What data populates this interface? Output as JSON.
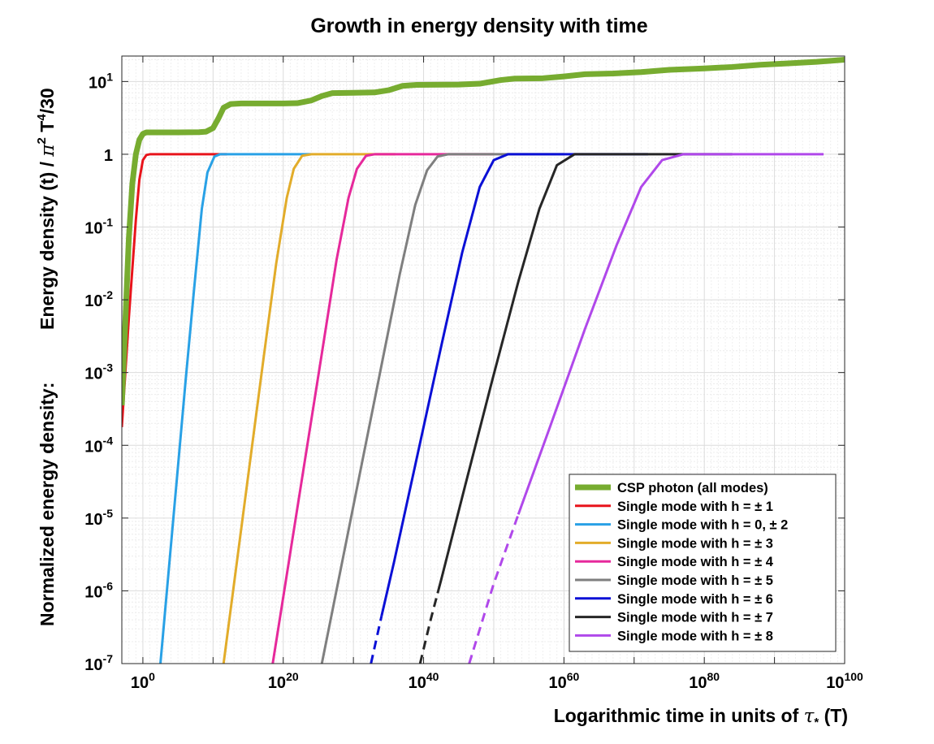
{
  "chart_data": {
    "type": "line",
    "title": "Growth in energy density with time",
    "xlabel": {
      "text": "Logarithmic time in units of",
      "symbol": "τ",
      "symbol_sub": "*",
      "suffix": "(T)"
    },
    "ylabel": {
      "part1": "Normalized energy density:",
      "part2": "Energy density (t) /",
      "pi": "π",
      "exp2": "2",
      "T": "T",
      "exp4": "4",
      "tail": "/30"
    },
    "x_scale": "log10",
    "y_scale": "log10",
    "xlim_log10": [
      -3,
      100
    ],
    "ylim_log10": [
      -7,
      1.35
    ],
    "grid": true,
    "x_ticks": [
      {
        "base": "10",
        "exp": "0",
        "log10": 0
      },
      {
        "base": "10",
        "exp": "20",
        "log10": 20
      },
      {
        "base": "10",
        "exp": "40",
        "log10": 40
      },
      {
        "base": "10",
        "exp": "60",
        "log10": 60
      },
      {
        "base": "10",
        "exp": "80",
        "log10": 80
      },
      {
        "base": "10",
        "exp": "100",
        "log10": 100
      }
    ],
    "y_ticks": [
      {
        "base": "10",
        "exp": "1",
        "log10": 1
      },
      {
        "base": "1",
        "exp": "",
        "log10": 0
      },
      {
        "base": "10",
        "exp": "-1",
        "log10": -1
      },
      {
        "base": "10",
        "exp": "-2",
        "log10": -2
      },
      {
        "base": "10",
        "exp": "-3",
        "log10": -3
      },
      {
        "base": "10",
        "exp": "-4",
        "log10": -4
      },
      {
        "base": "10",
        "exp": "-5",
        "log10": -5
      },
      {
        "base": "10",
        "exp": "-6",
        "log10": -6
      },
      {
        "base": "10",
        "exp": "-7",
        "log10": -7
      }
    ],
    "legend_position": "bottom-right",
    "series": [
      {
        "name": "CSP photon (all modes)",
        "color": "#77AC30",
        "width": 7,
        "points": [
          [
            -3,
            -3.45
          ],
          [
            -2.5,
            -2.3
          ],
          [
            -2,
            -1.15
          ],
          [
            -1.5,
            -0.4
          ],
          [
            -1,
            0.0
          ],
          [
            -0.5,
            0.2
          ],
          [
            0,
            0.28
          ],
          [
            0.5,
            0.301
          ],
          [
            1,
            0.301
          ],
          [
            5,
            0.301
          ],
          [
            8,
            0.303
          ],
          [
            9,
            0.31
          ],
          [
            10,
            0.36
          ],
          [
            10.8,
            0.5
          ],
          [
            11.5,
            0.64
          ],
          [
            12.5,
            0.69
          ],
          [
            14,
            0.699
          ],
          [
            20,
            0.699
          ],
          [
            22,
            0.702
          ],
          [
            24,
            0.74
          ],
          [
            25.5,
            0.8
          ],
          [
            27,
            0.841
          ],
          [
            30,
            0.845
          ],
          [
            33,
            0.85
          ],
          [
            35,
            0.88
          ],
          [
            37,
            0.94
          ],
          [
            39,
            0.954
          ],
          [
            45,
            0.958
          ],
          [
            48,
            0.97
          ],
          [
            51,
            1.02
          ],
          [
            53,
            1.04
          ],
          [
            57,
            1.045
          ],
          [
            60,
            1.07
          ],
          [
            63,
            1.1
          ],
          [
            67,
            1.11
          ],
          [
            71,
            1.13
          ],
          [
            75,
            1.16
          ],
          [
            80,
            1.18
          ],
          [
            84,
            1.2
          ],
          [
            88,
            1.23
          ],
          [
            92,
            1.25
          ],
          [
            96,
            1.27
          ],
          [
            100,
            1.3
          ]
        ]
      },
      {
        "name": "Single mode with h = ± 1",
        "color": "#E8141B",
        "width": 3,
        "points": [
          [
            -3,
            -3.75
          ],
          [
            -2,
            -2.25
          ],
          [
            -1,
            -0.9
          ],
          [
            -0.5,
            -0.35
          ],
          [
            0,
            -0.08
          ],
          [
            0.5,
            -0.01
          ],
          [
            1,
            0
          ],
          [
            12,
            0
          ]
        ]
      },
      {
        "name": "Single mode with h = 0, ± 2",
        "color": "#29A1E6",
        "width": 3,
        "points": [
          [
            2.5,
            -7
          ],
          [
            3.7,
            -5.7
          ],
          [
            4.9,
            -4.4
          ],
          [
            6.1,
            -3.1
          ],
          [
            7.3,
            -1.85
          ],
          [
            8.4,
            -0.75
          ],
          [
            9.2,
            -0.25
          ],
          [
            10.2,
            -0.03
          ],
          [
            11,
            0
          ],
          [
            24,
            0
          ]
        ]
      },
      {
        "name": "Single mode with h = ± 3",
        "color": "#E2AC2A",
        "width": 3,
        "points": [
          [
            11.5,
            -7
          ],
          [
            13.4,
            -5.6
          ],
          [
            15.3,
            -4.2
          ],
          [
            17.2,
            -2.8
          ],
          [
            19,
            -1.5
          ],
          [
            20.5,
            -0.6
          ],
          [
            21.5,
            -0.2
          ],
          [
            22.7,
            -0.02
          ],
          [
            24,
            0
          ],
          [
            36,
            0
          ]
        ]
      },
      {
        "name": "Single mode with h = ± 4",
        "color": "#E6299B",
        "width": 3,
        "points": [
          [
            18.5,
            -7
          ],
          [
            20.8,
            -5.6
          ],
          [
            23.1,
            -4.2
          ],
          [
            25.4,
            -2.8
          ],
          [
            27.6,
            -1.45
          ],
          [
            29.3,
            -0.6
          ],
          [
            30.5,
            -0.2
          ],
          [
            31.8,
            -0.02
          ],
          [
            33,
            0
          ],
          [
            50,
            0
          ]
        ]
      },
      {
        "name": "Single mode with h = ± 5",
        "color": "#7F7F7F",
        "width": 3,
        "points": [
          [
            25.5,
            -7
          ],
          [
            28.3,
            -5.65
          ],
          [
            31.1,
            -4.3
          ],
          [
            33.9,
            -2.95
          ],
          [
            36.6,
            -1.65
          ],
          [
            38.8,
            -0.7
          ],
          [
            40.5,
            -0.22
          ],
          [
            42,
            -0.03
          ],
          [
            43.5,
            0
          ],
          [
            60,
            0
          ]
        ]
      },
      {
        "name": "Single mode with h = ± 6",
        "color": "#0B10D6",
        "width": 3,
        "dash_until": 34,
        "points": [
          [
            32.5,
            -7
          ],
          [
            34,
            -6.35
          ],
          [
            35.8,
            -5.6
          ],
          [
            39.2,
            -4.1
          ],
          [
            42.6,
            -2.6
          ],
          [
            45.5,
            -1.35
          ],
          [
            48,
            -0.45
          ],
          [
            50,
            -0.08
          ],
          [
            52,
            0
          ],
          [
            72,
            0
          ]
        ]
      },
      {
        "name": "Single mode with h = ± 7",
        "color": "#262626",
        "width": 3,
        "dash_until": 42,
        "points": [
          [
            39.5,
            -7
          ],
          [
            41,
            -6.4
          ],
          [
            42.5,
            -5.85
          ],
          [
            45.8,
            -4.6
          ],
          [
            49.8,
            -3.1
          ],
          [
            53.5,
            -1.75
          ],
          [
            56.5,
            -0.75
          ],
          [
            59,
            -0.15
          ],
          [
            61.5,
            0
          ],
          [
            84,
            0
          ]
        ]
      },
      {
        "name": "Single mode with h = ± 8",
        "color": "#B048EA",
        "width": 3,
        "dash_until": 53.5,
        "points": [
          [
            46.5,
            -7
          ],
          [
            50,
            -5.9
          ],
          [
            53.5,
            -4.95
          ],
          [
            58,
            -3.75
          ],
          [
            63,
            -2.4
          ],
          [
            67.5,
            -1.25
          ],
          [
            71,
            -0.45
          ],
          [
            74,
            -0.08
          ],
          [
            77,
            0
          ],
          [
            97,
            0
          ]
        ]
      }
    ]
  }
}
